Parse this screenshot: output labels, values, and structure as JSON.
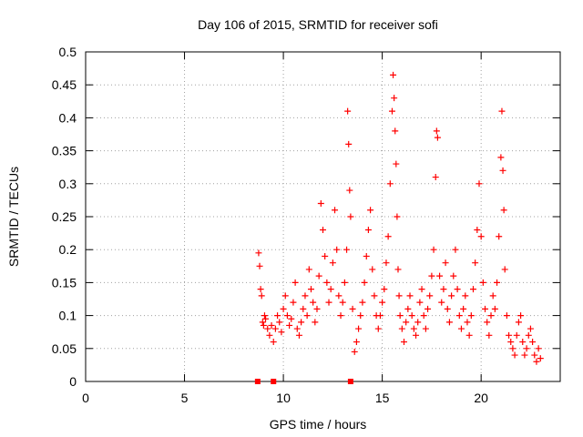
{
  "chart_data": {
    "type": "scatter",
    "title": "Day 106 of 2015, SRMTID for receiver sofi",
    "xlabel": "GPS time / hours",
    "ylabel": "SRMTID / TECUs",
    "xlim": [
      0,
      24
    ],
    "ylim": [
      0,
      0.5
    ],
    "xticks": [
      0,
      5,
      10,
      15,
      20
    ],
    "yticks": [
      0,
      0.05,
      0.1,
      0.15,
      0.2,
      0.25,
      0.3,
      0.35,
      0.4,
      0.45,
      0.5
    ],
    "xtick_labels": [
      "0",
      "5",
      "10",
      "15",
      "20"
    ],
    "ytick_labels": [
      "0",
      "0.05",
      "0.1",
      "0.15",
      "0.2",
      "0.25",
      "0.3",
      "0.35",
      "0.4",
      "0.45",
      "0.5"
    ],
    "grid": true,
    "marker": "+",
    "color": "#ff0000",
    "zero_markers_x": [
      8.7,
      9.5,
      13.4
    ],
    "series": [
      {
        "name": "SRMTID",
        "points": [
          [
            8.75,
            0.195
          ],
          [
            8.8,
            0.175
          ],
          [
            8.85,
            0.14
          ],
          [
            8.9,
            0.13
          ],
          [
            8.95,
            0.09
          ],
          [
            9.0,
            0.085
          ],
          [
            9.05,
            0.1
          ],
          [
            9.1,
            0.095
          ],
          [
            9.2,
            0.08
          ],
          [
            9.3,
            0.07
          ],
          [
            9.4,
            0.085
          ],
          [
            9.5,
            0.06
          ],
          [
            9.6,
            0.08
          ],
          [
            9.7,
            0.1
          ],
          [
            9.8,
            0.09
          ],
          [
            9.9,
            0.075
          ],
          [
            10.0,
            0.11
          ],
          [
            10.1,
            0.13
          ],
          [
            10.2,
            0.1
          ],
          [
            10.3,
            0.085
          ],
          [
            10.4,
            0.095
          ],
          [
            10.5,
            0.12
          ],
          [
            10.6,
            0.15
          ],
          [
            10.7,
            0.08
          ],
          [
            10.8,
            0.07
          ],
          [
            10.9,
            0.09
          ],
          [
            11.0,
            0.11
          ],
          [
            11.1,
            0.13
          ],
          [
            11.2,
            0.1
          ],
          [
            11.3,
            0.17
          ],
          [
            11.4,
            0.14
          ],
          [
            11.5,
            0.12
          ],
          [
            11.6,
            0.09
          ],
          [
            11.7,
            0.11
          ],
          [
            11.8,
            0.16
          ],
          [
            11.9,
            0.27
          ],
          [
            12.0,
            0.23
          ],
          [
            12.1,
            0.19
          ],
          [
            12.2,
            0.15
          ],
          [
            12.3,
            0.12
          ],
          [
            12.4,
            0.14
          ],
          [
            12.5,
            0.18
          ],
          [
            12.6,
            0.26
          ],
          [
            12.7,
            0.2
          ],
          [
            12.8,
            0.13
          ],
          [
            12.9,
            0.1
          ],
          [
            13.0,
            0.12
          ],
          [
            13.1,
            0.15
          ],
          [
            13.2,
            0.2
          ],
          [
            13.25,
            0.41
          ],
          [
            13.3,
            0.36
          ],
          [
            13.35,
            0.29
          ],
          [
            13.4,
            0.25
          ],
          [
            13.5,
            0.11
          ],
          [
            13.6,
            0.045
          ],
          [
            13.7,
            0.06
          ],
          [
            13.8,
            0.08
          ],
          [
            13.9,
            0.1
          ],
          [
            14.0,
            0.12
          ],
          [
            14.1,
            0.15
          ],
          [
            14.2,
            0.19
          ],
          [
            14.3,
            0.23
          ],
          [
            14.4,
            0.26
          ],
          [
            14.5,
            0.17
          ],
          [
            14.6,
            0.13
          ],
          [
            14.7,
            0.1
          ],
          [
            14.8,
            0.08
          ],
          [
            14.9,
            0.1
          ],
          [
            15.0,
            0.12
          ],
          [
            15.1,
            0.14
          ],
          [
            15.2,
            0.18
          ],
          [
            15.3,
            0.22
          ],
          [
            15.4,
            0.3
          ],
          [
            15.5,
            0.41
          ],
          [
            15.55,
            0.465
          ],
          [
            15.6,
            0.43
          ],
          [
            15.65,
            0.38
          ],
          [
            15.7,
            0.33
          ],
          [
            15.75,
            0.25
          ],
          [
            15.8,
            0.17
          ],
          [
            15.85,
            0.13
          ],
          [
            15.9,
            0.1
          ],
          [
            16.0,
            0.08
          ],
          [
            16.1,
            0.06
          ],
          [
            16.2,
            0.09
          ],
          [
            16.3,
            0.11
          ],
          [
            16.4,
            0.13
          ],
          [
            16.5,
            0.1
          ],
          [
            16.6,
            0.08
          ],
          [
            16.7,
            0.07
          ],
          [
            16.8,
            0.09
          ],
          [
            16.9,
            0.12
          ],
          [
            17.0,
            0.14
          ],
          [
            17.1,
            0.1
          ],
          [
            17.2,
            0.08
          ],
          [
            17.3,
            0.11
          ],
          [
            17.4,
            0.13
          ],
          [
            17.5,
            0.16
          ],
          [
            17.6,
            0.2
          ],
          [
            17.7,
            0.31
          ],
          [
            17.75,
            0.38
          ],
          [
            17.8,
            0.37
          ],
          [
            17.9,
            0.16
          ],
          [
            18.0,
            0.12
          ],
          [
            18.1,
            0.14
          ],
          [
            18.2,
            0.18
          ],
          [
            18.3,
            0.11
          ],
          [
            18.4,
            0.09
          ],
          [
            18.5,
            0.13
          ],
          [
            18.6,
            0.16
          ],
          [
            18.7,
            0.2
          ],
          [
            18.8,
            0.14
          ],
          [
            18.9,
            0.1
          ],
          [
            19.0,
            0.08
          ],
          [
            19.1,
            0.11
          ],
          [
            19.2,
            0.13
          ],
          [
            19.3,
            0.09
          ],
          [
            19.4,
            0.07
          ],
          [
            19.5,
            0.1
          ],
          [
            19.6,
            0.14
          ],
          [
            19.7,
            0.18
          ],
          [
            19.8,
            0.23
          ],
          [
            19.9,
            0.3
          ],
          [
            20.0,
            0.22
          ],
          [
            20.1,
            0.15
          ],
          [
            20.2,
            0.11
          ],
          [
            20.3,
            0.09
          ],
          [
            20.4,
            0.07
          ],
          [
            20.5,
            0.1
          ],
          [
            20.6,
            0.13
          ],
          [
            20.7,
            0.11
          ],
          [
            20.8,
            0.15
          ],
          [
            20.9,
            0.22
          ],
          [
            21.0,
            0.34
          ],
          [
            21.05,
            0.41
          ],
          [
            21.1,
            0.32
          ],
          [
            21.15,
            0.26
          ],
          [
            21.2,
            0.17
          ],
          [
            21.3,
            0.1
          ],
          [
            21.4,
            0.07
          ],
          [
            21.5,
            0.06
          ],
          [
            21.6,
            0.05
          ],
          [
            21.7,
            0.04
          ],
          [
            21.8,
            0.07
          ],
          [
            21.9,
            0.09
          ],
          [
            22.0,
            0.1
          ],
          [
            22.1,
            0.06
          ],
          [
            22.2,
            0.04
          ],
          [
            22.3,
            0.05
          ],
          [
            22.4,
            0.07
          ],
          [
            22.5,
            0.08
          ],
          [
            22.6,
            0.06
          ],
          [
            22.7,
            0.04
          ],
          [
            22.8,
            0.03
          ],
          [
            22.9,
            0.05
          ],
          [
            23.0,
            0.035
          ]
        ]
      }
    ]
  }
}
